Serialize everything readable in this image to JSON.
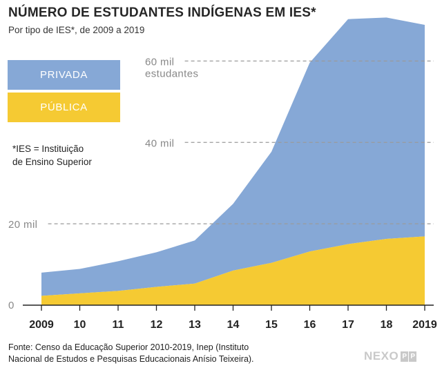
{
  "title": "NÚMERO DE ESTUDANTES INDÍGENAS EM IES*",
  "subtitle": "Por tipo de IES*, de 2009 a 2019",
  "legend": {
    "private_label": "PRIVADA",
    "public_label": "PÚBLICA"
  },
  "note": {
    "line1": "*IES = Instituição",
    "line2": "de Ensino Superior"
  },
  "source": {
    "line1": "Fonte: Censo da Educação Superior 2010-2019, Inep (Instituto",
    "line2": "Nacional de Estudos e Pesquisas Educacionais Anísio Teixeira)."
  },
  "logo": {
    "word": "NEXO",
    "mark": [
      "P",
      "P"
    ]
  },
  "colors": {
    "private": "#86a8d6",
    "public": "#f5ca33",
    "grid": "#9a9a9a",
    "axis": "#222222"
  },
  "chart_data": {
    "type": "area",
    "stacked": true,
    "x_tick_labels": [
      "2009",
      "10",
      "11",
      "12",
      "13",
      "14",
      "15",
      "16",
      "17",
      "18",
      "2019"
    ],
    "x": [
      2009,
      2010,
      2011,
      2012,
      2013,
      2014,
      2015,
      2016,
      2017,
      2018,
      2019
    ],
    "y_tick_labels": [
      {
        "value": 0,
        "label": "0"
      },
      {
        "value": 20000,
        "label": "20 mil"
      },
      {
        "value": 40000,
        "label": "40 mil"
      },
      {
        "value": 60000,
        "label": "60 mil",
        "sublabel": "estudantes"
      }
    ],
    "ylim": [
      0,
      75000
    ],
    "grid": "dashed horizontal at labelled ticks",
    "series": [
      {
        "name": "PÚBLICA",
        "values": [
          2300,
          2900,
          3500,
          4500,
          5300,
          8500,
          10400,
          13200,
          15000,
          16300,
          16900
        ]
      },
      {
        "name": "PRIVADA",
        "values": [
          5700,
          6000,
          7300,
          8500,
          10600,
          16400,
          27300,
          46400,
          55300,
          54400,
          52000
        ]
      }
    ]
  }
}
